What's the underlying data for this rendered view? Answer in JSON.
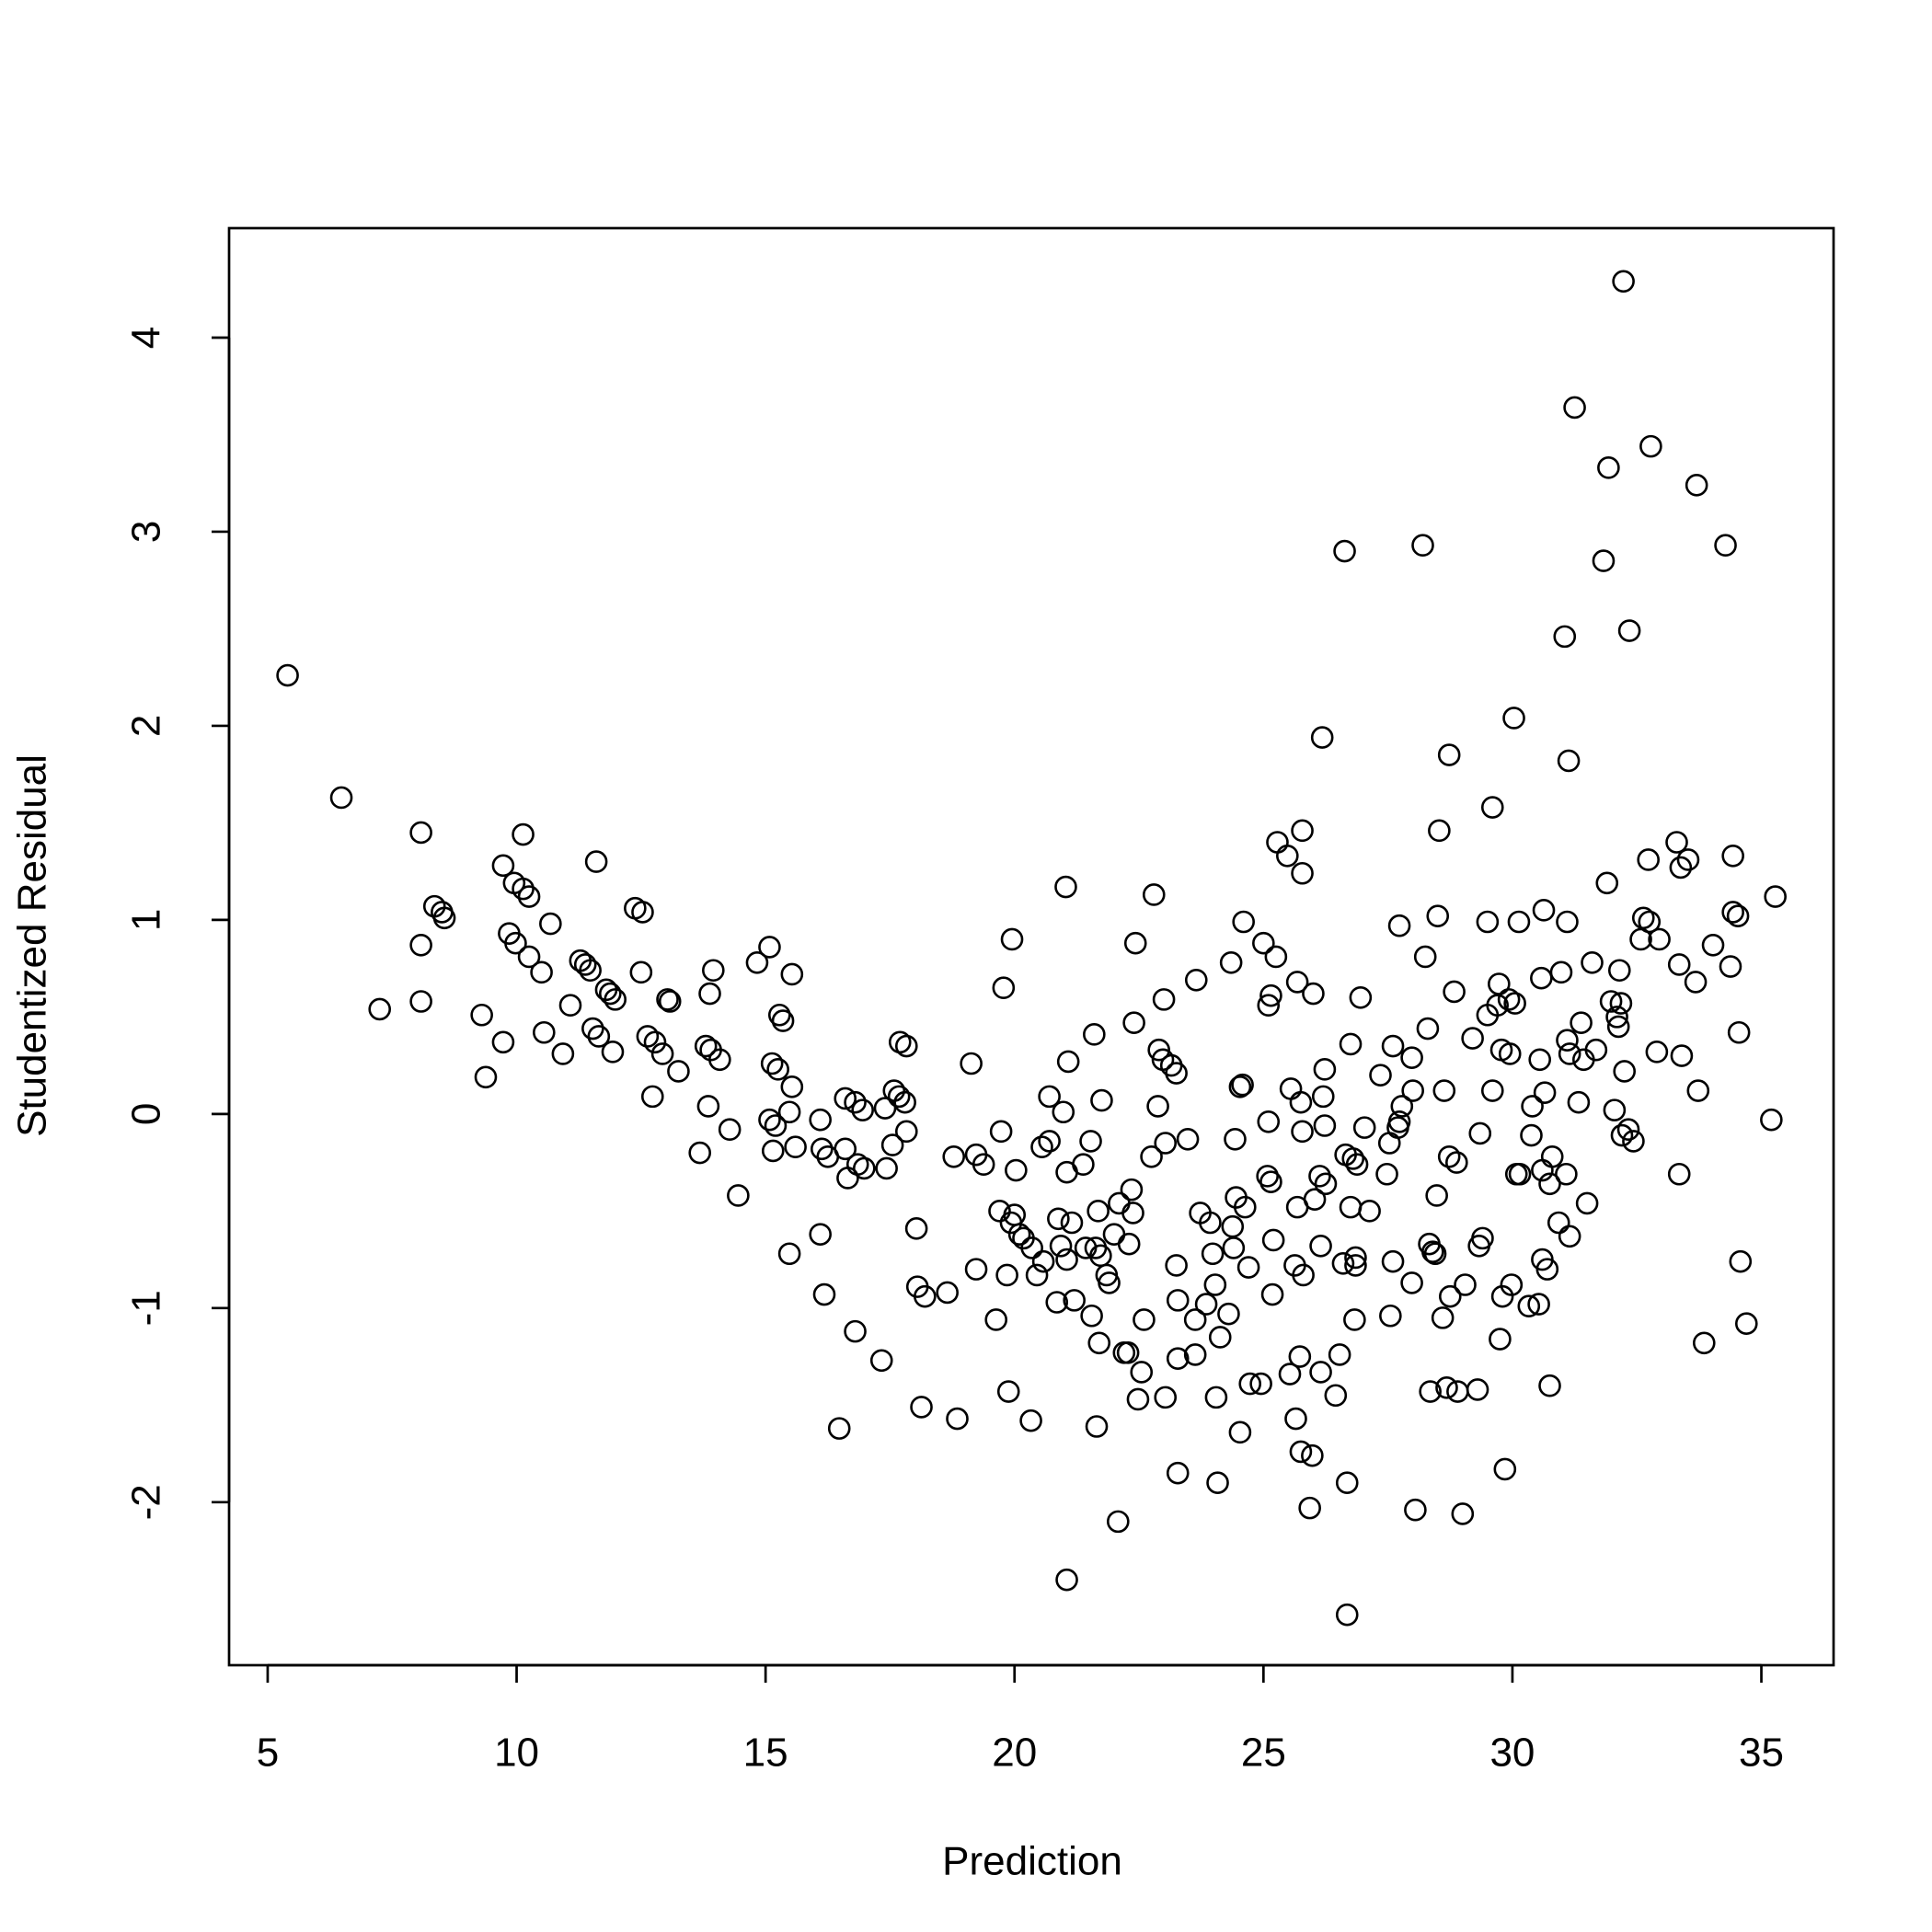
{
  "chart_data": {
    "type": "scatter",
    "x_label": "Prediction",
    "y_label": "Studentized Residual",
    "color": "#000000",
    "xlim": [
      4.225,
      36.45
    ],
    "ylim": [
      -2.84,
      4.564
    ],
    "xticks": [
      5,
      10,
      15,
      20,
      25,
      30,
      35
    ],
    "yticks": [
      -2,
      -1,
      0,
      1,
      2,
      3,
      4
    ],
    "x": [
      5.4,
      6.48,
      8.08,
      7.25,
      8.08,
      8.08,
      8.35,
      8.5,
      8.55,
      9.3,
      9.38,
      9.73,
      9.73,
      9.85,
      9.95,
      9.98,
      10.13,
      10.13,
      10.25,
      10.25,
      10.5,
      10.55,
      10.68,
      10.93,
      11.08,
      11.28,
      11.38,
      11.48,
      11.53,
      11.6,
      11.65,
      11.8,
      11.88,
      11.93,
      11.98,
      12.38,
      12.53,
      12.5,
      12.63,
      12.73,
      12.78,
      12.93,
      13.03,
      13.08,
      13.25,
      13.68,
      13.8,
      13.85,
      13.88,
      13.9,
      13.95,
      14.08,
      14.28,
      14.45,
      14.83,
      15.08,
      15.08,
      15.13,
      15.15,
      15.2,
      15.25,
      15.28,
      15.35,
      15.48,
      15.48,
      15.53,
      15.53,
      15.6,
      16.1,
      16.1,
      16.13,
      16.18,
      16.25,
      16.48,
      16.6,
      16.6,
      16.65,
      16.8,
      16.8,
      16.85,
      16.95,
      16.98,
      17.33,
      17.4,
      17.43,
      17.55,
      17.58,
      17.68,
      17.7,
      17.8,
      17.83,
      17.83,
      18.03,
      18.05,
      18.13,
      18.2,
      18.65,
      18.78,
      18.85,
      19.13,
      19.23,
      19.23,
      19.38,
      19.63,
      19.7,
      19.73,
      19.78,
      19.85,
      19.88,
      19.93,
      19.95,
      20.0,
      20.03,
      20.1,
      20.18,
      20.33,
      20.35,
      20.45,
      20.55,
      20.58,
      20.7,
      20.7,
      20.85,
      20.88,
      20.93,
      20.98,
      21.03,
      21.05,
      21.05,
      21.05,
      21.08,
      21.15,
      21.2,
      21.38,
      21.43,
      21.53,
      21.55,
      21.6,
      21.63,
      21.65,
      21.68,
      21.7,
      21.73,
      21.75,
      21.85,
      21.9,
      22.0,
      22.08,
      22.1,
      22.2,
      22.28,
      22.3,
      22.35,
      22.38,
      22.4,
      22.43,
      22.48,
      22.55,
      22.6,
      22.75,
      22.8,
      22.88,
      22.9,
      22.98,
      23.0,
      23.03,
      23.03,
      23.15,
      23.25,
      23.25,
      23.28,
      23.28,
      23.28,
      23.48,
      23.63,
      23.63,
      23.65,
      23.73,
      23.85,
      23.93,
      23.98,
      24.03,
      24.05,
      24.08,
      24.13,
      24.3,
      24.35,
      24.38,
      24.4,
      24.43,
      24.45,
      24.53,
      24.53,
      24.58,
      24.6,
      24.63,
      24.7,
      24.73,
      24.95,
      25.0,
      25.08,
      25.1,
      25.1,
      25.15,
      25.15,
      25.18,
      25.2,
      25.25,
      25.28,
      25.48,
      25.53,
      25.55,
      25.63,
      25.65,
      25.68,
      25.68,
      25.73,
      25.75,
      25.75,
      25.78,
      25.78,
      25.78,
      25.8,
      25.93,
      25.98,
      26.0,
      26.03,
      26.13,
      26.15,
      26.15,
      26.18,
      26.2,
      26.23,
      26.23,
      26.25,
      26.45,
      26.53,
      26.6,
      26.63,
      26.65,
      26.68,
      26.68,
      26.75,
      26.75,
      26.8,
      26.83,
      26.85,
      26.85,
      26.88,
      26.95,
      27.03,
      27.13,
      27.35,
      27.48,
      27.53,
      27.55,
      27.6,
      27.6,
      27.7,
      27.73,
      27.73,
      27.78,
      27.98,
      27.98,
      28.0,
      28.05,
      28.2,
      28.25,
      28.3,
      28.33,
      28.35,
      28.4,
      28.45,
      28.48,
      28.5,
      28.53,
      28.6,
      28.63,
      28.68,
      28.73,
      28.73,
      28.75,
      28.83,
      28.88,
      28.9,
      29.0,
      29.05,
      29.2,
      29.3,
      29.33,
      29.35,
      29.4,
      29.5,
      29.5,
      29.6,
      29.6,
      29.7,
      29.73,
      29.75,
      29.78,
      29.8,
      29.85,
      29.93,
      29.95,
      29.98,
      30.03,
      30.05,
      30.08,
      30.13,
      30.15,
      30.33,
      30.38,
      30.4,
      30.53,
      30.55,
      30.58,
      30.6,
      30.6,
      30.63,
      30.65,
      30.7,
      30.75,
      30.75,
      30.8,
      30.93,
      30.98,
      31.05,
      31.08,
      31.1,
      31.1,
      31.13,
      31.15,
      31.15,
      31.25,
      31.33,
      31.38,
      31.43,
      31.5,
      31.6,
      31.68,
      31.83,
      31.9,
      31.93,
      31.98,
      32.05,
      32.1,
      32.13,
      32.15,
      32.18,
      32.2,
      32.23,
      32.25,
      32.33,
      32.35,
      32.43,
      32.58,
      32.63,
      32.73,
      32.75,
      32.78,
      32.9,
      32.95,
      33.3,
      33.35,
      33.35,
      33.38,
      33.4,
      33.53,
      33.68,
      33.7,
      33.73,
      33.85,
      34.03,
      34.28,
      34.38,
      34.43,
      34.43,
      34.53,
      34.55,
      34.58,
      34.7,
      35.2,
      35.28
    ],
    "values": [
      2.26,
      1.63,
      1.45,
      0.54,
      0.87,
      0.58,
      1.07,
      1.04,
      1.01,
      0.51,
      0.19,
      1.28,
      0.37,
      0.93,
      1.19,
      0.88,
      1.44,
      1.16,
      1.12,
      0.81,
      0.73,
      0.42,
      0.98,
      0.31,
      0.56,
      0.79,
      0.77,
      0.74,
      0.44,
      1.3,
      0.4,
      0.64,
      0.62,
      0.32,
      0.59,
      1.06,
      1.04,
      0.73,
      0.4,
      0.09,
      0.37,
      0.31,
      0.59,
      0.58,
      0.22,
      -0.2,
      0.35,
      0.04,
      0.62,
      0.33,
      0.74,
      0.28,
      -0.08,
      -0.42,
      0.78,
      0.86,
      -0.03,
      0.26,
      -0.19,
      -0.06,
      0.23,
      0.51,
      0.48,
      0.01,
      -0.72,
      0.72,
      0.14,
      -0.17,
      -0.03,
      -0.62,
      -0.18,
      -0.93,
      -0.22,
      -1.62,
      0.08,
      -0.18,
      -0.33,
      0.06,
      -1.12,
      -0.26,
      0.02,
      -0.28,
      -1.27,
      0.03,
      -0.28,
      -0.16,
      0.12,
      0.09,
      0.37,
      0.06,
      0.35,
      -0.09,
      -0.59,
      -0.89,
      -1.51,
      -0.94,
      -0.92,
      -0.22,
      -1.57,
      0.26,
      -0.21,
      -0.8,
      -0.26,
      -1.06,
      -0.5,
      -0.09,
      0.65,
      -0.83,
      -1.43,
      -0.56,
      0.9,
      -0.52,
      -0.29,
      -0.62,
      -0.64,
      -1.58,
      -0.69,
      -0.83,
      -0.17,
      -0.76,
      -0.14,
      0.09,
      -0.97,
      -0.54,
      -0.68,
      0.01,
      1.17,
      -0.3,
      -2.4,
      -0.75,
      0.27,
      -0.56,
      -0.96,
      -0.26,
      -0.69,
      -0.14,
      -1.04,
      0.41,
      -0.69,
      -1.61,
      -0.5,
      -1.18,
      -0.73,
      0.07,
      -0.83,
      -0.87,
      -0.62,
      -2.1,
      -0.46,
      -1.23,
      -1.23,
      -0.67,
      -0.39,
      -0.51,
      0.47,
      0.88,
      -1.47,
      -1.33,
      -1.06,
      -0.22,
      1.13,
      0.04,
      0.33,
      0.28,
      0.59,
      -0.15,
      -1.46,
      0.25,
      0.21,
      -0.78,
      -0.96,
      -1.26,
      -1.85,
      -0.13,
      -1.06,
      -1.24,
      0.69,
      -0.51,
      -0.98,
      -0.56,
      -0.72,
      -0.88,
      -1.46,
      -1.9,
      -1.15,
      -1.03,
      0.78,
      -0.58,
      -0.69,
      -0.13,
      -0.43,
      0.14,
      -1.64,
      0.15,
      0.99,
      -0.48,
      -0.79,
      -1.39,
      -1.39,
      0.88,
      -0.32,
      0.56,
      -0.04,
      0.61,
      -0.35,
      -0.93,
      -0.65,
      0.81,
      1.4,
      1.33,
      -1.34,
      0.13,
      -0.78,
      -1.57,
      -0.48,
      0.68,
      -1.25,
      -1.74,
      0.06,
      1.46,
      1.24,
      -0.09,
      -0.83,
      -2.03,
      -1.76,
      0.62,
      -0.44,
      -0.32,
      -0.68,
      -1.33,
      1.94,
      0.09,
      0.23,
      -0.06,
      -0.36,
      -1.45,
      -1.24,
      -0.77,
      2.9,
      -0.21,
      -1.9,
      -2.58,
      0.36,
      -0.48,
      -0.23,
      -1.06,
      -0.74,
      -0.78,
      -0.26,
      0.6,
      -0.07,
      -0.5,
      0.2,
      -0.31,
      -0.15,
      -1.04,
      -0.76,
      0.35,
      -0.07,
      0.97,
      -0.04,
      0.04,
      0.29,
      -0.87,
      0.12,
      -2.04,
      2.93,
      0.81,
      0.44,
      -0.67,
      -1.43,
      -0.71,
      -0.72,
      -0.42,
      1.02,
      1.46,
      -1.05,
      0.12,
      -1.41,
      1.85,
      -0.22,
      -0.94,
      0.63,
      -0.25,
      -1.43,
      -2.06,
      -0.88,
      0.39,
      -1.42,
      -0.68,
      -0.1,
      -0.64,
      0.99,
      0.51,
      1.58,
      0.12,
      0.56,
      0.67,
      -1.16,
      0.33,
      -0.94,
      -1.83,
      0.59,
      0.31,
      -0.88,
      2.04,
      0.57,
      -0.31,
      0.99,
      -0.31,
      -0.99,
      -0.11,
      0.04,
      -0.98,
      0.28,
      0.7,
      -0.75,
      -0.29,
      1.05,
      0.11,
      -0.8,
      -1.4,
      -0.36,
      -0.22,
      -0.56,
      0.73,
      2.46,
      -0.31,
      0.99,
      0.38,
      1.82,
      0.31,
      -0.63,
      3.64,
      0.06,
      0.47,
      0.28,
      -0.46,
      0.78,
      0.33,
      2.85,
      1.19,
      3.33,
      0.58,
      0.02,
      0.5,
      0.45,
      0.74,
      0.57,
      -0.11,
      4.29,
      0.22,
      -0.08,
      2.49,
      -0.14,
      0.9,
      1.01,
      1.31,
      0.99,
      3.44,
      0.32,
      0.9,
      1.4,
      0.77,
      -0.31,
      1.27,
      0.3,
      1.31,
      0.68,
      3.24,
      0.12,
      -1.18,
      0.87,
      2.93,
      0.76,
      1.33,
      1.04,
      1.02,
      0.42,
      -0.76,
      -1.08,
      -0.03,
      1.12
    ]
  }
}
